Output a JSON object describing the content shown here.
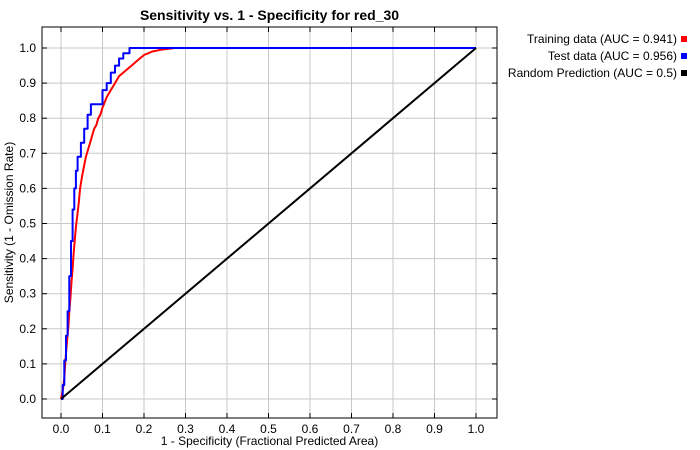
{
  "chart_data": {
    "type": "line",
    "title": "Sensitivity vs. 1 - Specificity for red_30",
    "xlabel": "1 - Specificity  (Fractional Predicted Area)",
    "ylabel": "Sensitivity  (1 - Omission Rate)",
    "xlim": [
      0,
      1
    ],
    "ylim": [
      0,
      1
    ],
    "x_ticks": [
      "0.0",
      "0.1",
      "0.2",
      "0.3",
      "0.4",
      "0.5",
      "0.6",
      "0.7",
      "0.8",
      "0.9",
      "1.0"
    ],
    "y_ticks": [
      "0.0",
      "0.1",
      "0.2",
      "0.3",
      "0.4",
      "0.5",
      "0.6",
      "0.7",
      "0.8",
      "0.9",
      "1.0"
    ],
    "grid": true,
    "legend_position": "outside-top-right",
    "series": [
      {
        "name": "Training data (AUC = 0.941)",
        "color": "#ff0000",
        "x": [
          0,
          0.005,
          0.008,
          0.01,
          0.012,
          0.015,
          0.018,
          0.02,
          0.023,
          0.025,
          0.028,
          0.03,
          0.033,
          0.036,
          0.04,
          0.043,
          0.046,
          0.05,
          0.055,
          0.06,
          0.065,
          0.07,
          0.075,
          0.08,
          0.085,
          0.09,
          0.095,
          0.1,
          0.11,
          0.12,
          0.13,
          0.14,
          0.15,
          0.16,
          0.17,
          0.18,
          0.19,
          0.2,
          0.21,
          0.22,
          0.24,
          0.26,
          0.275,
          0.3,
          0.4,
          0.5,
          0.6,
          0.7,
          0.8,
          0.9,
          1.0
        ],
        "y": [
          0,
          0.03,
          0.06,
          0.1,
          0.13,
          0.17,
          0.21,
          0.25,
          0.29,
          0.33,
          0.37,
          0.41,
          0.45,
          0.49,
          0.53,
          0.56,
          0.6,
          0.63,
          0.66,
          0.69,
          0.71,
          0.73,
          0.75,
          0.77,
          0.78,
          0.8,
          0.81,
          0.83,
          0.86,
          0.88,
          0.9,
          0.92,
          0.93,
          0.94,
          0.95,
          0.96,
          0.97,
          0.98,
          0.985,
          0.99,
          0.995,
          0.998,
          1.0,
          1.0,
          1.0,
          1.0,
          1.0,
          1.0,
          1.0,
          1.0,
          1.0
        ]
      },
      {
        "name": "Test data (AUC = 0.956)",
        "color": "#0000ff",
        "x": [
          0,
          0.004,
          0.004,
          0.008,
          0.008,
          0.012,
          0.012,
          0.016,
          0.016,
          0.02,
          0.02,
          0.024,
          0.024,
          0.028,
          0.028,
          0.032,
          0.032,
          0.036,
          0.036,
          0.04,
          0.04,
          0.048,
          0.048,
          0.056,
          0.056,
          0.064,
          0.064,
          0.072,
          0.072,
          0.1,
          0.1,
          0.11,
          0.11,
          0.12,
          0.12,
          0.13,
          0.13,
          0.14,
          0.14,
          0.15,
          0.15,
          0.165,
          0.165,
          0.2,
          0.3,
          0.5,
          0.7,
          1.0
        ],
        "y": [
          0,
          0,
          0.04,
          0.04,
          0.11,
          0.11,
          0.18,
          0.18,
          0.25,
          0.25,
          0.35,
          0.35,
          0.45,
          0.45,
          0.54,
          0.54,
          0.6,
          0.6,
          0.65,
          0.65,
          0.69,
          0.69,
          0.73,
          0.73,
          0.77,
          0.77,
          0.81,
          0.81,
          0.84,
          0.84,
          0.88,
          0.88,
          0.9,
          0.9,
          0.93,
          0.93,
          0.95,
          0.95,
          0.97,
          0.97,
          0.985,
          0.985,
          1.0,
          1.0,
          1.0,
          1.0,
          1.0,
          1.0
        ]
      },
      {
        "name": "Random Prediction (AUC = 0.5)",
        "color": "#000000",
        "x": [
          0,
          1
        ],
        "y": [
          0,
          1
        ]
      }
    ]
  }
}
